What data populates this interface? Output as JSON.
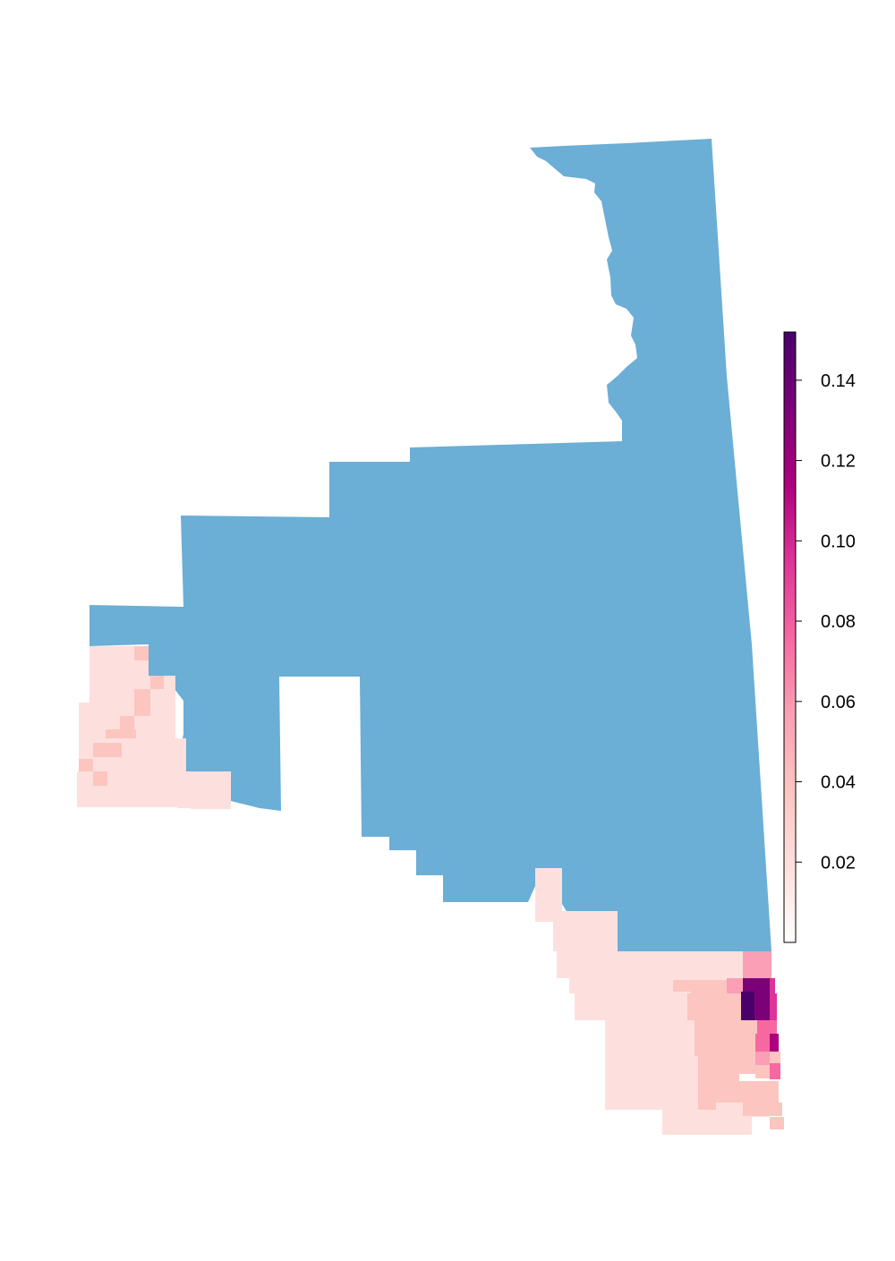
{
  "region_color": "#6baed6",
  "legend": {
    "colors": [
      "#ffffff",
      "#fde0dd",
      "#fcc5c0",
      "#fa9fb5",
      "#f768a1",
      "#dd3497",
      "#ae017e",
      "#7a0177",
      "#49006a"
    ],
    "domain": [
      0.0,
      0.152
    ],
    "ticks": [
      {
        "value": 0.02,
        "label": "0.02"
      },
      {
        "value": 0.04,
        "label": "0.04"
      },
      {
        "value": 0.06,
        "label": "0.06"
      },
      {
        "value": 0.08,
        "label": "0.08"
      },
      {
        "value": 0.1,
        "label": "0.10"
      },
      {
        "value": 0.12,
        "label": "0.12"
      },
      {
        "value": 0.14,
        "label": "0.14"
      }
    ]
  }
}
